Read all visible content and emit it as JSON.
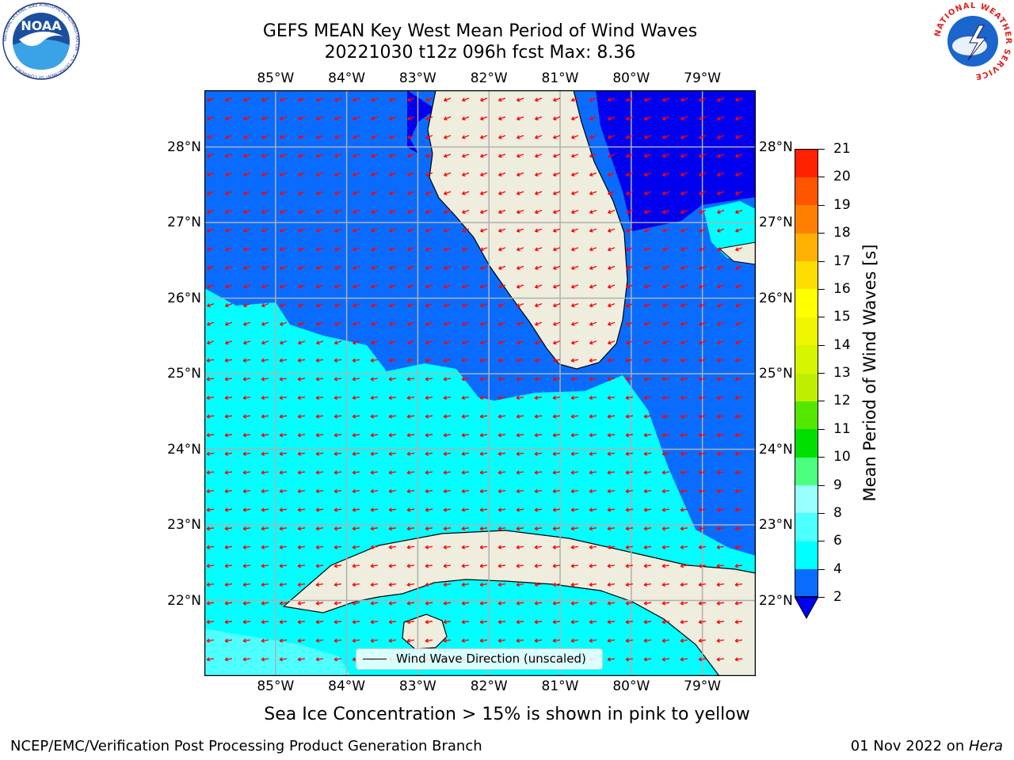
{
  "header": {
    "title_line1": "GEFS MEAN Key West Mean Period of Wind Waves",
    "title_line2": "20221030 t12z 096h fcst   Max: 8.36"
  },
  "logos": {
    "left": {
      "name": "noaa-logo",
      "text": "NOAA",
      "ring_text": "NATIONAL OCEANIC AND ATMOSPHERIC ADMINISTRATION · U.S. DEPARTMENT OF COMMERCE"
    },
    "right": {
      "name": "nws-logo",
      "ring_text": "NATIONAL WEATHER SERVICE"
    }
  },
  "map": {
    "lon_ticks": [
      "85°W",
      "84°W",
      "83°W",
      "82°W",
      "81°W",
      "80°W",
      "79°W"
    ],
    "lon_values": [
      -85,
      -84,
      -83,
      -82,
      -81,
      -80,
      -79
    ],
    "lat_ticks": [
      "28°N",
      "27°N",
      "26°N",
      "25°N",
      "24°N",
      "23°N",
      "22°N"
    ],
    "lat_values": [
      28,
      27,
      26,
      25,
      24,
      23,
      22
    ],
    "extent": {
      "lon_min": -86,
      "lon_max": -78.25,
      "lat_min": 21,
      "lat_max": 28.75
    },
    "legend_label": "Wind Wave Direction (unscaled)",
    "arrow_color": "#ff0000",
    "land_color": "#efedde",
    "grid_color": "#b0b0b0"
  },
  "colorbar": {
    "label": "Mean Period of Wind Waves [s]",
    "ticks": [
      "2",
      "4",
      "6",
      "8",
      "9",
      "10",
      "11",
      "12",
      "13",
      "14",
      "15",
      "16",
      "17",
      "18",
      "19",
      "20",
      "21"
    ],
    "colors": [
      "#0a6cff",
      "#00ffff",
      "#4dffff",
      "#99ffff",
      "#4dff80",
      "#00e000",
      "#55e600",
      "#c0ee00",
      "#d6f500",
      "#eef500",
      "#ffff00",
      "#ffdd00",
      "#ffb000",
      "#ff8000",
      "#ff5500",
      "#ff2000"
    ],
    "under_color": "#0000ee"
  },
  "captions": {
    "bottom": "Sea Ice Concentration > 15% is shown in pink to yellow",
    "footer_left": "NCEP/EMC/Verification Post Processing Product Generation Branch",
    "footer_right_prefix": "01 Nov 2022 on ",
    "footer_right_host": "Hera"
  }
}
